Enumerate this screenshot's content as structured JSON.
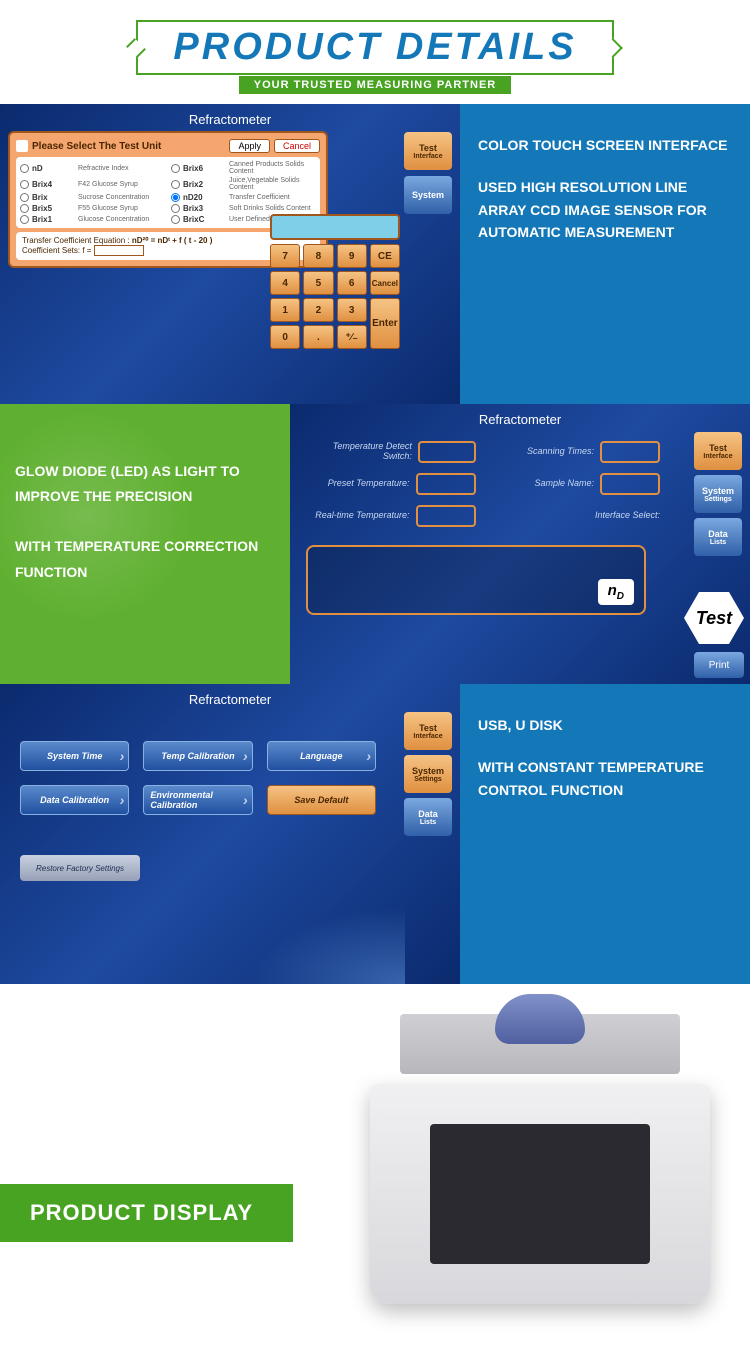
{
  "header": {
    "title": "PRODUCT  DETAILS",
    "subtitle": "YOUR TRUSTED MEASURING PARTNER"
  },
  "screenTitle": "Refractometer",
  "panel1": {
    "selectTitle": "Please Select The Test Unit",
    "apply": "Apply",
    "cancel": "Cancel",
    "units": [
      {
        "code": "nD",
        "desc": "Refractive Index"
      },
      {
        "code": "Brix4",
        "desc": "F42 Glucose Syrup"
      },
      {
        "code": "Brix",
        "desc": "Sucrose Concentration"
      },
      {
        "code": "Brix5",
        "desc": "F55 Glucose Syrup"
      },
      {
        "code": "Brix1",
        "desc": "Glucose Concentration"
      },
      {
        "code": "Brix6",
        "desc": "Canned Products Solids Content"
      },
      {
        "code": "Brix2",
        "desc": "Juice,Vegetable Solids Content"
      },
      {
        "code": "nD20",
        "desc": "Transfer Coefficient"
      },
      {
        "code": "Brix3",
        "desc": "Soft Drinks Solids Content"
      },
      {
        "code": "BrixC",
        "desc": "User Defined"
      }
    ],
    "eqLabel": "Transfer Coefficient Equation :",
    "equation": "nD²⁰ = nDᵗ + f ( t - 20 )",
    "coefLabel": "Coefficient Sets:  f =",
    "sideBtns": {
      "test": "Test",
      "testSub": "Interface",
      "system": "System"
    },
    "keys": [
      "7",
      "8",
      "9",
      "CE",
      "4",
      "5",
      "6",
      "Cancel",
      "1",
      "2",
      "3",
      "Enter",
      "0",
      ".",
      "⁺∕₋"
    ],
    "desc1": "COLOR TOUCH SCREEN INTERFACE",
    "desc2": "USED HIGH RESOLUTION LINE ARRAY CCD IMAGE SENSOR FOR AUTOMATIC MEASUREMENT"
  },
  "panel2": {
    "desc1": "GLOW DIODE (LED) AS LIGHT TO IMPROVE THE PRECISION",
    "desc2": "WITH TEMPERATURE CORRECTION FUNCTION",
    "labels": {
      "tempSwitch": "Temperature Detect Switch:",
      "scanTimes": "Scanning Times:",
      "presetTemp": "Preset Temperature:",
      "sampleName": "Sample Name:",
      "realTemp": "Real-time Temperature:",
      "ifaceSelect": "Interface Select:"
    },
    "nd": "nD",
    "sideBtns": {
      "test": "Test",
      "testSub": "Interface",
      "system": "System",
      "systemSub": "Settings",
      "data": "Data",
      "dataSub": "Lists"
    },
    "testBtn": "Test",
    "printBtn": "Print"
  },
  "panel3": {
    "btns": [
      "System Time",
      "Temp Calibration",
      "Language",
      "Data Calibration",
      "Environmental Calibration",
      "Save Default"
    ],
    "restore": "Restore Factory Settings",
    "sideBtns": {
      "test": "Test",
      "testSub": "Interface",
      "system": "System",
      "systemSub": "Settings",
      "data": "Data",
      "dataSub": "Lists"
    },
    "desc1": "USB, U DISK",
    "desc2": "WITH CONSTANT TEMPERATURE CONTROL FUNCTION"
  },
  "productDisplay": "PRODUCT DISPLAY"
}
